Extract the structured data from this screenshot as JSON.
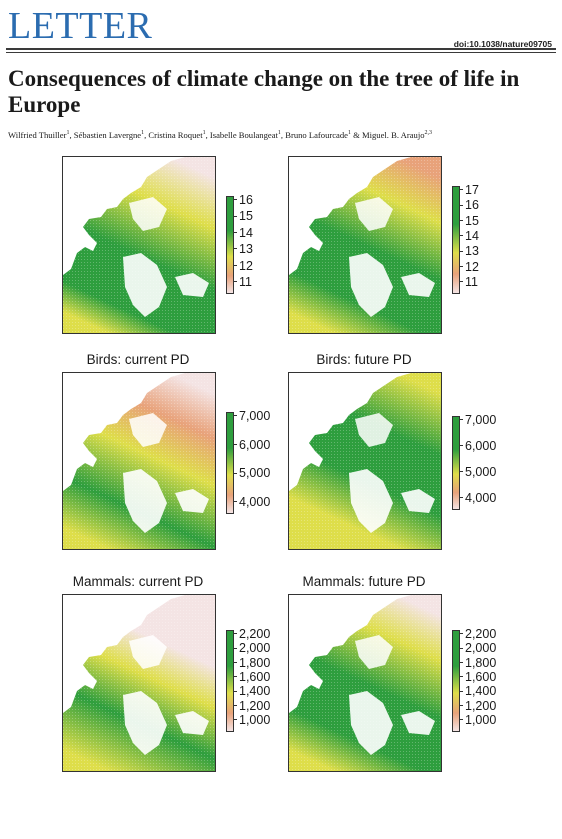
{
  "header": {
    "journal_label": "LETTER",
    "doi": "doi:10.1038/nature09705"
  },
  "article": {
    "title": "Consequences of climate change on the tree of life in Europe",
    "authors": [
      {
        "name": "Wilfried Thuiller",
        "aff": "1"
      },
      {
        "name": "Sébastien Lavergne",
        "aff": "1"
      },
      {
        "name": "Cristina Roquet",
        "aff": "1"
      },
      {
        "name": "Isabelle Boulangeat",
        "aff": "1"
      },
      {
        "name": "Bruno Lafourcade",
        "aff": "1"
      },
      {
        "name": "Miguel. B. Araujo",
        "aff": "2,3"
      }
    ],
    "author_separators": [
      ", ",
      ", ",
      ", ",
      ", ",
      " & ",
      ""
    ]
  },
  "colors": {
    "high": "#2e9e3e",
    "mid": "#dede4a",
    "low": "#e8a27a",
    "lowest": "#f4e4e4"
  },
  "panels": [
    {
      "title": "",
      "legend_ticks": [
        "16",
        "15",
        "14",
        "13",
        "12",
        "11"
      ],
      "legend_max": "",
      "variant": "plants-current"
    },
    {
      "title": "",
      "legend_ticks": [
        "17",
        "16",
        "15",
        "14",
        "13",
        "12",
        "11"
      ],
      "variant": "plants-future"
    },
    {
      "title": "Birds: current PD",
      "legend_ticks": [
        "7,000",
        "6,000",
        "5,000",
        "4,000"
      ],
      "variant": "birds-current"
    },
    {
      "title": "Birds: future PD",
      "legend_ticks": [
        "7,000",
        "6,000",
        "5,000",
        "4,000"
      ],
      "variant": "birds-future"
    },
    {
      "title": "Mammals: current PD",
      "legend_ticks": [
        "2,200",
        "2,000",
        "1,800",
        "1,600",
        "1,400",
        "1,200",
        "1,000"
      ],
      "variant": "mammals-current"
    },
    {
      "title": "Mammals: future PD",
      "legend_ticks": [
        "2,200",
        "2,000",
        "1,800",
        "1,600",
        "1,400",
        "1,200",
        "1,000"
      ],
      "variant": "mammals-future"
    }
  ]
}
